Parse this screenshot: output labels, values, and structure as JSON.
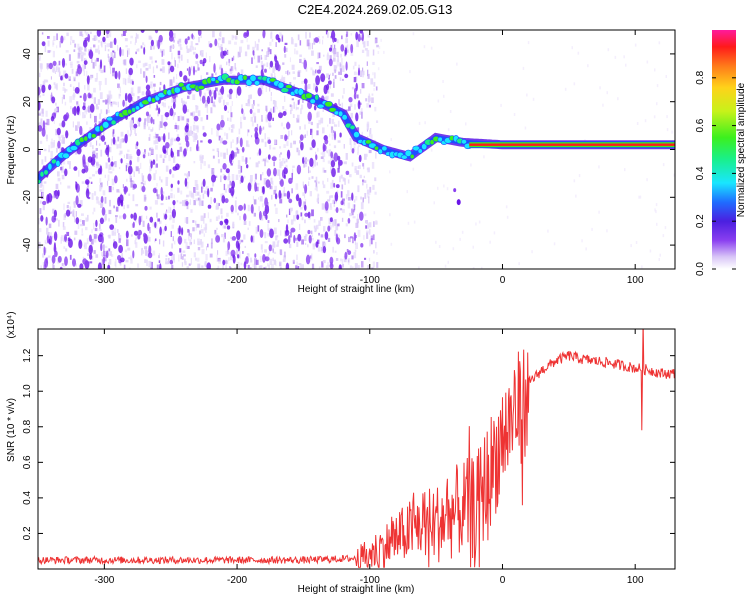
{
  "title": "C2E4.2024.269.02.05.G13",
  "chart_data": [
    {
      "type": "heatmap",
      "xlabel": "Height of straight line (km)",
      "ylabel": "Frequency (Hz)",
      "xlim": [
        -350,
        130
      ],
      "ylim": [
        -50,
        50
      ],
      "xticks": [
        -300,
        -200,
        -100,
        0,
        100
      ],
      "yticks": [
        -40,
        -20,
        0,
        20,
        40
      ],
      "colorbar": {
        "label": "Normalized spectral amplitude",
        "range": [
          0,
          1
        ],
        "ticks": [
          "0.0",
          "0.2",
          "0.4",
          "0.6",
          "0.8"
        ],
        "colors": [
          "#ffffff",
          "#d9c6f7",
          "#8a3ff0",
          "#4b1fe0",
          "#1f6dff",
          "#19e6ff",
          "#19f08a",
          "#3cf01e",
          "#c7f21a",
          "#ffd21a",
          "#ff7a1a",
          "#ff1a1a",
          "#ff1a9c"
        ]
      },
      "ridge": [
        {
          "x": -350,
          "y": -12
        },
        {
          "x": -330,
          "y": -2
        },
        {
          "x": -300,
          "y": 10
        },
        {
          "x": -270,
          "y": 20
        },
        {
          "x": -240,
          "y": 26
        },
        {
          "x": -210,
          "y": 29
        },
        {
          "x": -180,
          "y": 29
        },
        {
          "x": -150,
          "y": 23
        },
        {
          "x": -120,
          "y": 15
        },
        {
          "x": -110,
          "y": 5
        },
        {
          "x": -90,
          "y": 0
        },
        {
          "x": -70,
          "y": -3
        },
        {
          "x": -50,
          "y": 5
        },
        {
          "x": -30,
          "y": 3
        },
        {
          "x": 0,
          "y": 2
        },
        {
          "x": 50,
          "y": 2
        },
        {
          "x": 100,
          "y": 2
        },
        {
          "x": 130,
          "y": 2
        }
      ]
    },
    {
      "type": "line",
      "xlabel": "Height of straight line (km)",
      "ylabel": "SNR (10 * v/v)",
      "y_multiplier": "(x10⁴)",
      "xlim": [
        -350,
        130
      ],
      "ylim": [
        0,
        1.35
      ],
      "xticks": [
        -300,
        -200,
        -100,
        0,
        100
      ],
      "yticks": [
        0.2,
        0.4,
        0.6,
        0.8,
        1.0,
        1.2
      ],
      "color": "#ee3333",
      "series": [
        {
          "x": [
            -350,
            -300,
            -250,
            -200,
            -150,
            -110,
            -100,
            -90,
            -80,
            -70,
            -60,
            -50,
            -40,
            -30,
            -20,
            -10,
            0,
            10,
            20,
            30,
            40,
            50,
            60,
            80,
            100,
            110,
            120,
            130
          ],
          "y": [
            0.05,
            0.05,
            0.05,
            0.05,
            0.05,
            0.06,
            0.1,
            0.15,
            0.2,
            0.25,
            0.3,
            0.3,
            0.35,
            0.4,
            0.4,
            0.6,
            0.8,
            0.95,
            1.05,
            1.12,
            1.17,
            1.2,
            1.18,
            1.16,
            1.13,
            1.12,
            1.1,
            1.1
          ]
        }
      ]
    }
  ]
}
